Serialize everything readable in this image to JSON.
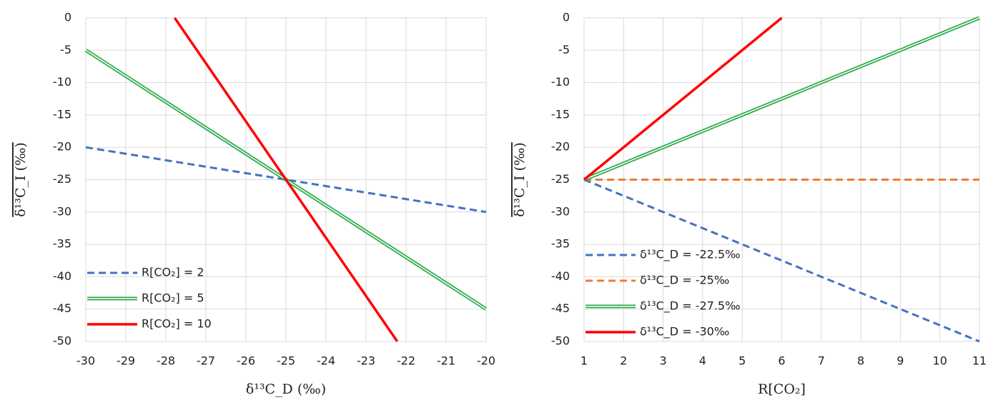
{
  "chart_data": [
    {
      "type": "line",
      "x_label": "δ¹³C_D (‰)",
      "y_label": "δ¹³C_I (‰)",
      "xlim": [
        -30,
        -20
      ],
      "xticks": [
        -30,
        -29,
        -28,
        -27,
        -26,
        -25,
        -24,
        -23,
        -22,
        -21,
        -20
      ],
      "ylim": [
        -50,
        0
      ],
      "yticks": [
        -50,
        -45,
        -40,
        -35,
        -30,
        -25,
        -20,
        -15,
        -10,
        -5,
        0
      ],
      "grid": true,
      "legend": "lower left",
      "series": [
        {
          "name": "R[CO₂] = 2",
          "color": "#4472c4",
          "style": "dashed",
          "x": [
            -30,
            -20
          ],
          "values": [
            -20,
            -30
          ]
        },
        {
          "name": "R[CO₂] = 5",
          "color": "#2eaa4a",
          "style": "double",
          "x": [
            -30,
            -20
          ],
          "values": [
            -5,
            -45
          ]
        },
        {
          "name": "R[CO₂] = 10",
          "color": "#ff0000",
          "style": "solid",
          "x": [
            -27.78,
            -22.22
          ],
          "values": [
            0,
            -50
          ]
        }
      ]
    },
    {
      "type": "line",
      "x_label": "R[CO₂]",
      "y_label": "δ¹³C_I (‰)",
      "xlim": [
        1,
        11
      ],
      "xticks": [
        1,
        2,
        3,
        4,
        5,
        6,
        7,
        8,
        9,
        10,
        11
      ],
      "ylim": [
        -50,
        0
      ],
      "yticks": [
        -50,
        -45,
        -40,
        -35,
        -30,
        -25,
        -20,
        -15,
        -10,
        -5,
        0
      ],
      "grid": true,
      "legend": "lower left",
      "series": [
        {
          "name": "δ¹³C_D = -22.5‰",
          "color": "#4472c4",
          "style": "dashed",
          "x": [
            1,
            11
          ],
          "values": [
            -25,
            -50
          ]
        },
        {
          "name": "δ¹³C_D = -25‰",
          "color": "#ed7d31",
          "style": "dashed",
          "x": [
            1,
            11
          ],
          "values": [
            -25,
            -25
          ]
        },
        {
          "name": "δ¹³C_D = -27.5‰",
          "color": "#2eaa4a",
          "style": "double",
          "x": [
            1,
            11
          ],
          "values": [
            -25,
            0
          ]
        },
        {
          "name": "δ¹³C_D = -30‰",
          "color": "#ff0000",
          "style": "solid",
          "x": [
            1,
            6
          ],
          "values": [
            -25,
            0
          ]
        }
      ]
    }
  ]
}
